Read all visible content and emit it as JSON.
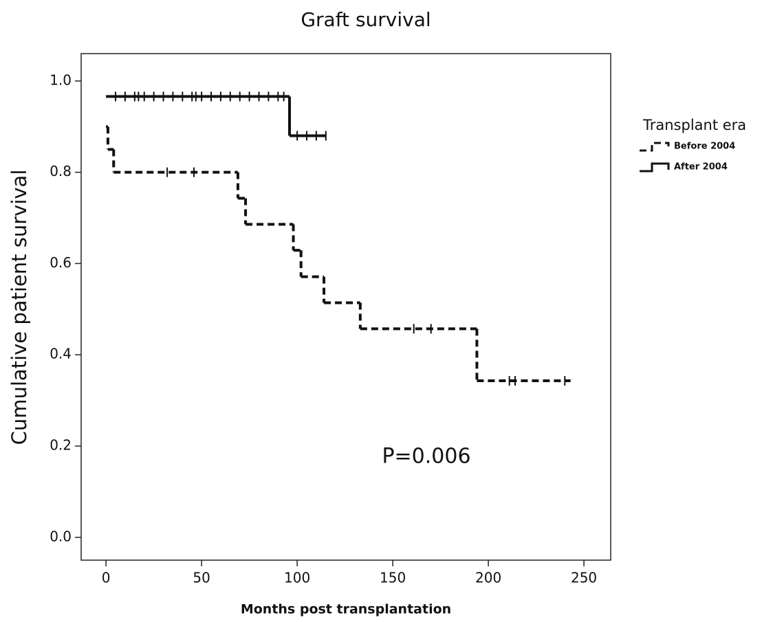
{
  "chart_data": {
    "type": "step",
    "title": "Graft survival",
    "x_label": "Months post transplantation",
    "y_label": "Cumulative patient survival",
    "annotation": "P=0.006",
    "legend_title": "Transplant era",
    "legend_position": "outside-right",
    "xlim": [
      -13,
      264
    ],
    "ylim": [
      -0.05,
      1.06
    ],
    "xticks": [
      0,
      50,
      100,
      150,
      200,
      250
    ],
    "yticks": [
      {
        "value": 0,
        "label": "0.0"
      },
      0.2,
      0.4,
      0.6,
      0.8,
      {
        "value": 1,
        "label": "1.0"
      }
    ],
    "grid": false,
    "series": [
      {
        "name": "Before 2004",
        "color": "#111111",
        "dash": "dashed",
        "x": [
          0,
          1,
          4,
          69,
          73,
          98,
          102,
          114,
          133,
          194,
          243
        ],
        "values": [
          0.9,
          0.85,
          0.8,
          0.743,
          0.686,
          0.629,
          0.571,
          0.514,
          0.457,
          0.343,
          0.343
        ],
        "censored_x": [
          32,
          46,
          161,
          170,
          211,
          214,
          240
        ],
        "censored_values": [
          0.8,
          0.8,
          0.457,
          0.457,
          0.343,
          0.343,
          0.343
        ]
      },
      {
        "name": "After 2004",
        "color": "#111111",
        "dash": "solid",
        "x": [
          0,
          96,
          115
        ],
        "values": [
          0.966,
          0.88,
          0.88
        ],
        "censored_x": [
          5,
          10,
          15,
          17,
          20,
          25,
          30,
          35,
          40,
          45,
          47,
          50,
          55,
          60,
          65,
          70,
          75,
          80,
          85,
          90,
          93,
          100,
          105,
          110,
          115
        ],
        "censored_values": [
          0.966,
          0.966,
          0.966,
          0.966,
          0.966,
          0.966,
          0.966,
          0.966,
          0.966,
          0.966,
          0.966,
          0.966,
          0.966,
          0.966,
          0.966,
          0.966,
          0.966,
          0.966,
          0.966,
          0.966,
          0.966,
          0.88,
          0.88,
          0.88,
          0.88
        ]
      }
    ]
  }
}
